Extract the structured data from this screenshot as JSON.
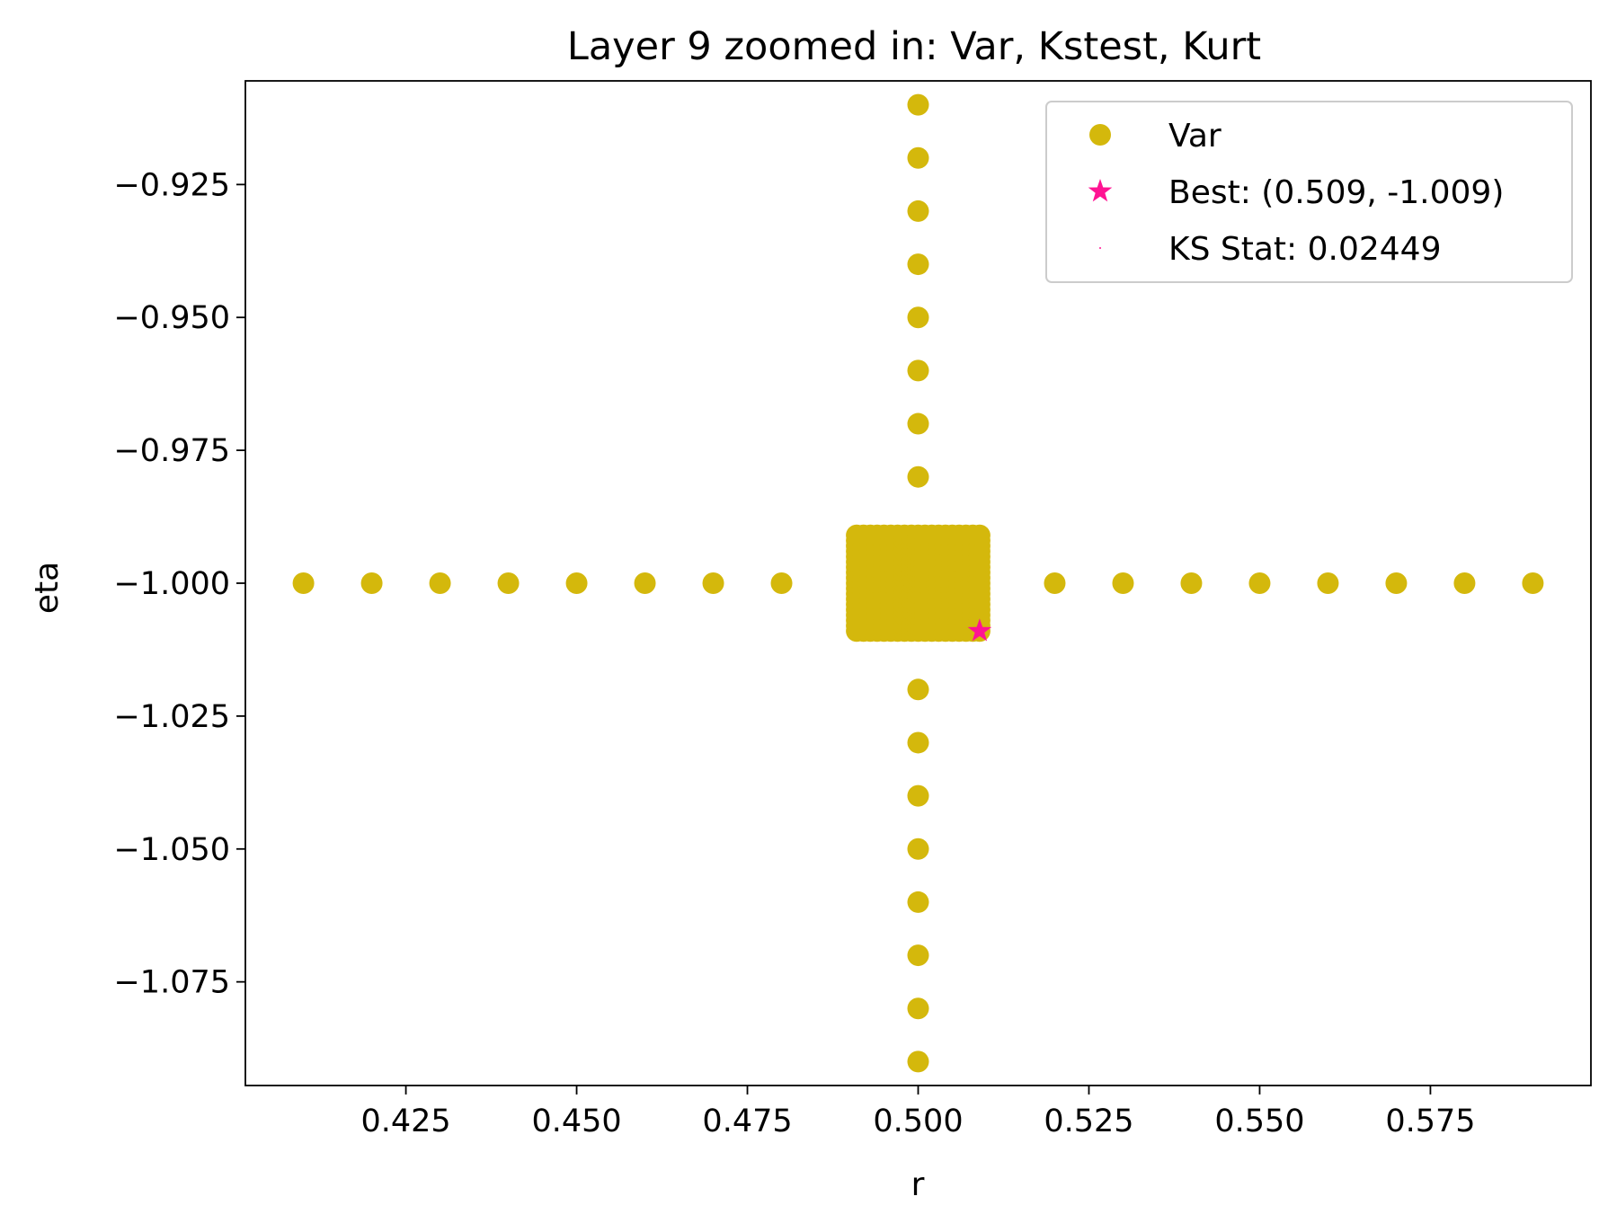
{
  "chart_data": {
    "type": "scatter",
    "title": "Layer 9 zoomed in: Var, Kstest, Kurt",
    "xlabel": "r",
    "ylabel": "eta",
    "xlim": [
      0.4015,
      0.5985
    ],
    "ylim": [
      -1.0945,
      -0.9055
    ],
    "x_ticks": [
      0.425,
      0.45,
      0.475,
      0.5,
      0.525,
      0.55,
      0.575
    ],
    "x_tick_labels": [
      "0.425",
      "0.450",
      "0.475",
      "0.500",
      "0.525",
      "0.550",
      "0.575"
    ],
    "y_ticks": [
      -0.925,
      -0.95,
      -0.975,
      -1.0,
      -1.025,
      -1.05,
      -1.075
    ],
    "y_tick_labels": [
      "−0.925",
      "−0.950",
      "−0.975",
      "−1.000",
      "−1.025",
      "−1.050",
      "−1.075"
    ],
    "grid": false,
    "legend_position": "top-right",
    "series": [
      {
        "name": "Var",
        "color": "#d4b80c",
        "marker": "circle",
        "points": [
          [
            0.41,
            -1.0
          ],
          [
            0.42,
            -1.0
          ],
          [
            0.43,
            -1.0
          ],
          [
            0.44,
            -1.0
          ],
          [
            0.45,
            -1.0
          ],
          [
            0.46,
            -1.0
          ],
          [
            0.47,
            -1.0
          ],
          [
            0.48,
            -1.0
          ],
          [
            0.52,
            -1.0
          ],
          [
            0.53,
            -1.0
          ],
          [
            0.54,
            -1.0
          ],
          [
            0.55,
            -1.0
          ],
          [
            0.56,
            -1.0
          ],
          [
            0.57,
            -1.0
          ],
          [
            0.58,
            -1.0
          ],
          [
            0.59,
            -1.0
          ],
          [
            0.5,
            -0.91
          ],
          [
            0.5,
            -0.92
          ],
          [
            0.5,
            -0.93
          ],
          [
            0.5,
            -0.94
          ],
          [
            0.5,
            -0.95
          ],
          [
            0.5,
            -0.96
          ],
          [
            0.5,
            -0.97
          ],
          [
            0.5,
            -0.98
          ],
          [
            0.5,
            -1.02
          ],
          [
            0.5,
            -1.03
          ],
          [
            0.5,
            -1.04
          ],
          [
            0.5,
            -1.05
          ],
          [
            0.5,
            -1.06
          ],
          [
            0.5,
            -1.07
          ],
          [
            0.5,
            -1.08
          ],
          [
            0.5,
            -1.09
          ]
        ],
        "dense_grid": {
          "x_range": [
            0.491,
            0.509
          ],
          "y_range": [
            -1.009,
            -0.991
          ],
          "step": 0.001
        }
      },
      {
        "name": "Best: (0.509, -1.009)",
        "color": "#ff1493",
        "marker": "star",
        "points": [
          [
            0.509,
            -1.009
          ]
        ]
      },
      {
        "name": "KS Stat: 0.02449",
        "color": "#ff1493",
        "marker": "dot",
        "points": []
      }
    ]
  }
}
